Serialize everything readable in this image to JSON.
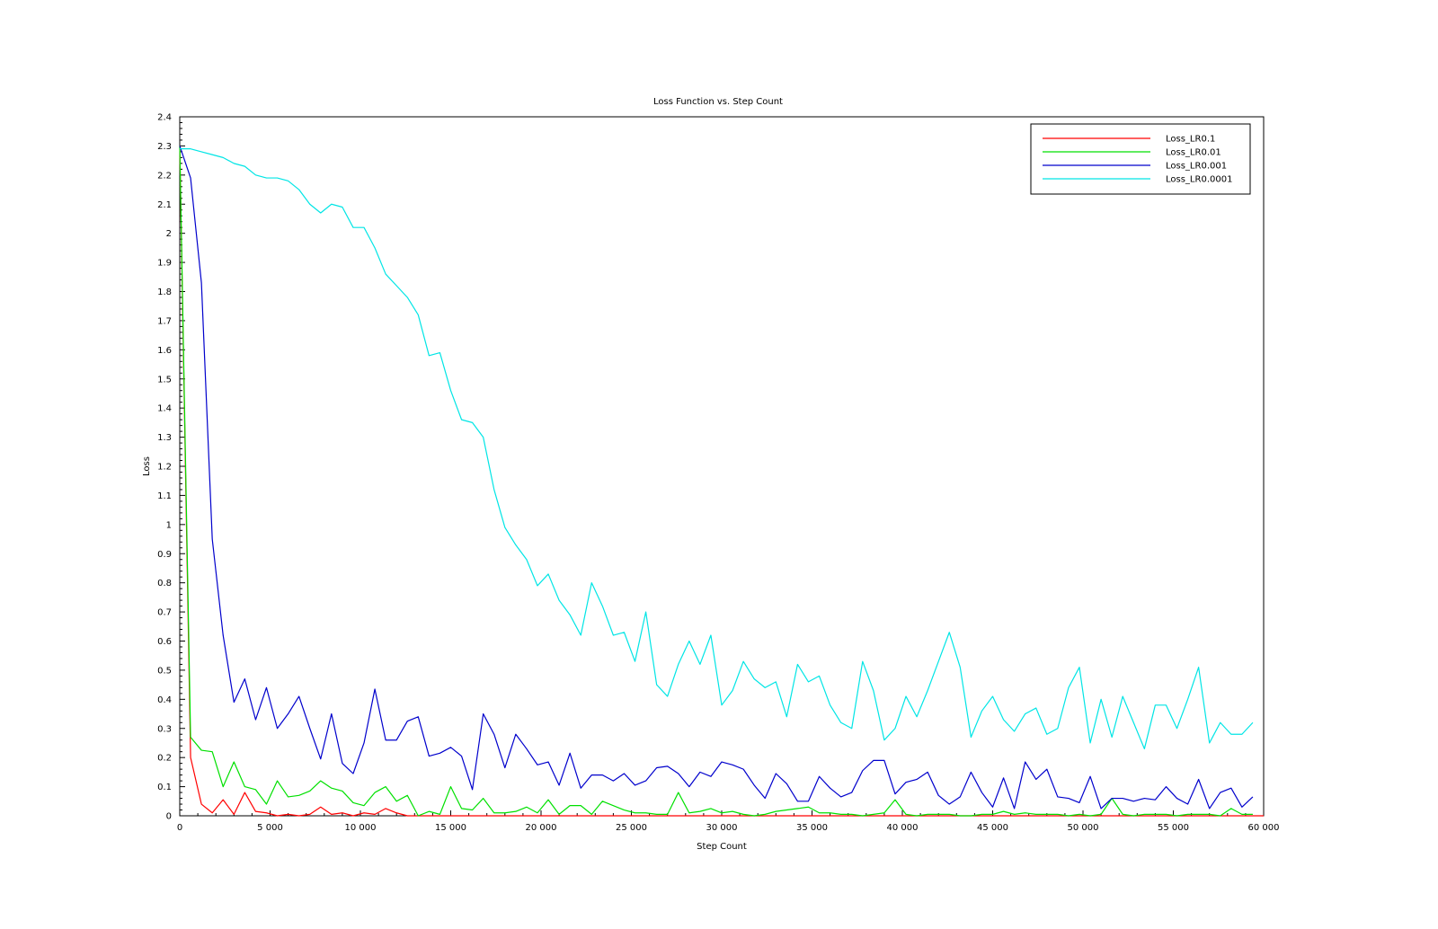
{
  "chart_data": {
    "type": "line",
    "title": "Loss Function vs. Step Count",
    "xlabel": "Step Count",
    "ylabel": "Loss",
    "xlim": [
      0,
      60000
    ],
    "ylim": [
      0,
      2.4
    ],
    "x_ticks": [
      0,
      5000,
      10000,
      15000,
      20000,
      25000,
      30000,
      35000,
      40000,
      45000,
      50000,
      55000,
      60000
    ],
    "x_tick_labels": [
      "0",
      "5 000",
      "10 000",
      "15 000",
      "20 000",
      "25 000",
      "30 000",
      "35 000",
      "40 000",
      "45 000",
      "50 000",
      "55 000",
      "60 000"
    ],
    "y_ticks": [
      0,
      0.1,
      0.2,
      0.3,
      0.4,
      0.5,
      0.6,
      0.7,
      0.8,
      0.9,
      1,
      1.1,
      1.2,
      1.3,
      1.4,
      1.5,
      1.6,
      1.7,
      1.8,
      1.9,
      2,
      2.1,
      2.2,
      2.3,
      2.4
    ],
    "y_tick_labels": [
      "0",
      "0.1",
      "0.2",
      "0.3",
      "0.4",
      "0.5",
      "0.6",
      "0.7",
      "0.8",
      "0.9",
      "1",
      "1.1",
      "1.2",
      "1.3",
      "1.4",
      "1.5",
      "1.6",
      "1.7",
      "1.8",
      "1.9",
      "2",
      "2.1",
      "2.2",
      "2.3",
      "2.4"
    ],
    "grid": false,
    "legend_position": "top-right",
    "series": [
      {
        "name": "Loss_LR0.1",
        "color": "#ff0000",
        "x": [
          0,
          600,
          1200,
          1800,
          2400,
          3000,
          3600,
          4200,
          4800,
          5400,
          6000,
          6600,
          7200,
          7800,
          8400,
          9000,
          9600,
          10200,
          10800,
          11400,
          12000,
          12600,
          13200,
          14000,
          16000,
          20000,
          25000,
          30000,
          35000,
          40000,
          45000,
          50000,
          55000,
          60000
        ],
        "y": [
          2.3,
          0.2,
          0.04,
          0.01,
          0.055,
          0.005,
          0.08,
          0.015,
          0.01,
          0.0,
          0.005,
          0.0,
          0.005,
          0.03,
          0.005,
          0.01,
          0.0,
          0.01,
          0.005,
          0.025,
          0.01,
          0.0,
          0.0,
          0.0,
          0.0,
          0.0,
          0.0,
          0.0,
          0.0,
          0.0,
          0.0,
          0.0,
          0.0,
          0.0
        ]
      },
      {
        "name": "Loss_LR0.01",
        "color": "#00e000",
        "x": [
          0,
          600,
          1200,
          1800,
          2400,
          3000,
          3600,
          4200,
          4800,
          5400,
          6000,
          6600,
          7200,
          7800,
          8400,
          9000,
          9600,
          10200,
          10800,
          11400,
          12000,
          12600,
          13200,
          13800,
          14400,
          15000,
          15600,
          16200,
          16800,
          17400,
          18000,
          18600,
          19200,
          19800,
          20400,
          21000,
          21600,
          22200,
          22800,
          23400,
          24000,
          24600,
          25200,
          25800,
          26400,
          27000,
          27600,
          28200,
          28800,
          29400,
          30000,
          30600,
          31200,
          31800,
          32400,
          33000,
          33600,
          34200,
          34800,
          35400,
          36000,
          36600,
          37200,
          37800,
          38400,
          39000,
          39600,
          40200,
          40800,
          41400,
          42000,
          42600,
          43200,
          43800,
          44400,
          45000,
          45600,
          46200,
          46800,
          47400,
          48000,
          48600,
          49200,
          49800,
          50400,
          51000,
          51600,
          52200,
          52800,
          53400,
          54000,
          54600,
          55200,
          55800,
          56400,
          57000,
          57600,
          58200,
          58800,
          59400
        ],
        "y": [
          2.3,
          0.27,
          0.225,
          0.22,
          0.1,
          0.185,
          0.1,
          0.09,
          0.04,
          0.12,
          0.065,
          0.07,
          0.085,
          0.12,
          0.095,
          0.085,
          0.045,
          0.035,
          0.08,
          0.1,
          0.05,
          0.07,
          0.0,
          0.015,
          0.005,
          0.1,
          0.025,
          0.02,
          0.06,
          0.01,
          0.01,
          0.015,
          0.03,
          0.01,
          0.055,
          0.005,
          0.035,
          0.035,
          0.005,
          0.05,
          0.035,
          0.02,
          0.01,
          0.01,
          0.005,
          0.005,
          0.08,
          0.01,
          0.015,
          0.025,
          0.01,
          0.015,
          0.005,
          0.0,
          0.005,
          0.015,
          0.02,
          0.025,
          0.03,
          0.01,
          0.01,
          0.005,
          0.005,
          0.0,
          0.005,
          0.01,
          0.055,
          0.005,
          0.0,
          0.005,
          0.005,
          0.005,
          0.0,
          0.0,
          0.005,
          0.005,
          0.015,
          0.005,
          0.01,
          0.005,
          0.005,
          0.005,
          0.0,
          0.005,
          0.0,
          0.005,
          0.06,
          0.005,
          0.0,
          0.005,
          0.005,
          0.005,
          0.0,
          0.005,
          0.005,
          0.005,
          0.0,
          0.025,
          0.005,
          0.005
        ]
      },
      {
        "name": "Loss_LR0.001",
        "color": "#0000cc",
        "x": [
          0,
          600,
          1200,
          1800,
          2400,
          3000,
          3600,
          4200,
          4800,
          5400,
          6000,
          6600,
          7200,
          7800,
          8400,
          9000,
          9600,
          10200,
          10800,
          11400,
          12000,
          12600,
          13200,
          13800,
          14400,
          15000,
          15600,
          16200,
          16800,
          17400,
          18000,
          18600,
          19200,
          19800,
          20400,
          21000,
          21600,
          22200,
          22800,
          23400,
          24000,
          24600,
          25200,
          25800,
          26400,
          27000,
          27600,
          28200,
          28800,
          29400,
          30000,
          30600,
          31200,
          31800,
          32400,
          33000,
          33600,
          34200,
          34800,
          35400,
          36000,
          36600,
          37200,
          37800,
          38400,
          39000,
          39600,
          40200,
          40800,
          41400,
          42000,
          42600,
          43200,
          43800,
          44400,
          45000,
          45600,
          46200,
          46800,
          47400,
          48000,
          48600,
          49200,
          49800,
          50400,
          51000,
          51600,
          52200,
          52800,
          53400,
          54000,
          54600,
          55200,
          55800,
          56400,
          57000,
          57600,
          58200,
          58800,
          59400
        ],
        "y": [
          2.3,
          2.19,
          1.83,
          0.95,
          0.62,
          0.39,
          0.47,
          0.33,
          0.44,
          0.3,
          0.35,
          0.41,
          0.3,
          0.195,
          0.35,
          0.18,
          0.145,
          0.25,
          0.435,
          0.26,
          0.26,
          0.325,
          0.34,
          0.205,
          0.215,
          0.235,
          0.205,
          0.09,
          0.35,
          0.28,
          0.165,
          0.28,
          0.23,
          0.175,
          0.185,
          0.105,
          0.215,
          0.095,
          0.14,
          0.14,
          0.12,
          0.145,
          0.105,
          0.12,
          0.165,
          0.17,
          0.145,
          0.1,
          0.15,
          0.135,
          0.185,
          0.175,
          0.16,
          0.105,
          0.06,
          0.145,
          0.11,
          0.05,
          0.05,
          0.135,
          0.095,
          0.065,
          0.08,
          0.155,
          0.19,
          0.19,
          0.075,
          0.115,
          0.125,
          0.15,
          0.07,
          0.04,
          0.065,
          0.15,
          0.08,
          0.03,
          0.13,
          0.025,
          0.185,
          0.125,
          0.16,
          0.065,
          0.06,
          0.045,
          0.135,
          0.025,
          0.06,
          0.06,
          0.05,
          0.06,
          0.055,
          0.1,
          0.06,
          0.04,
          0.125,
          0.025,
          0.08,
          0.095,
          0.03,
          0.065
        ]
      },
      {
        "name": "Loss_LR0.0001",
        "color": "#00e5e5",
        "x": [
          0,
          600,
          1200,
          1800,
          2400,
          3000,
          3600,
          4200,
          4800,
          5400,
          6000,
          6600,
          7200,
          7800,
          8400,
          9000,
          9600,
          10200,
          10800,
          11400,
          12000,
          12600,
          13200,
          13800,
          14400,
          15000,
          15600,
          16200,
          16800,
          17400,
          18000,
          18600,
          19200,
          19800,
          20400,
          21000,
          21600,
          22200,
          22800,
          23400,
          24000,
          24600,
          25200,
          25800,
          26400,
          27000,
          27600,
          28200,
          28800,
          29400,
          30000,
          30600,
          31200,
          31800,
          32400,
          33000,
          33600,
          34200,
          34800,
          35400,
          36000,
          36600,
          37200,
          37800,
          38400,
          39000,
          39600,
          40200,
          40800,
          41400,
          42000,
          42600,
          43200,
          43800,
          44400,
          45000,
          45600,
          46200,
          46800,
          47400,
          48000,
          48600,
          49200,
          49800,
          50400,
          51000,
          51600,
          52200,
          52800,
          53400,
          54000,
          54600,
          55200,
          55800,
          56400,
          57000,
          57600,
          58200,
          58800,
          59400
        ],
        "y": [
          2.29,
          2.29,
          2.28,
          2.27,
          2.26,
          2.24,
          2.23,
          2.2,
          2.19,
          2.19,
          2.18,
          2.15,
          2.1,
          2.07,
          2.1,
          2.09,
          2.02,
          2.02,
          1.95,
          1.86,
          1.82,
          1.78,
          1.72,
          1.58,
          1.59,
          1.46,
          1.36,
          1.35,
          1.3,
          1.12,
          0.99,
          0.93,
          0.88,
          0.79,
          0.83,
          0.74,
          0.69,
          0.62,
          0.8,
          0.72,
          0.62,
          0.63,
          0.53,
          0.7,
          0.45,
          0.41,
          0.52,
          0.6,
          0.52,
          0.62,
          0.38,
          0.43,
          0.53,
          0.47,
          0.44,
          0.46,
          0.34,
          0.52,
          0.46,
          0.48,
          0.38,
          0.32,
          0.3,
          0.53,
          0.43,
          0.26,
          0.3,
          0.41,
          0.34,
          0.43,
          0.53,
          0.63,
          0.51,
          0.27,
          0.36,
          0.41,
          0.33,
          0.29,
          0.35,
          0.37,
          0.28,
          0.3,
          0.44,
          0.51,
          0.25,
          0.4,
          0.27,
          0.41,
          0.32,
          0.23,
          0.38,
          0.38,
          0.3,
          0.4,
          0.51,
          0.25,
          0.32,
          0.28,
          0.28,
          0.32
        ]
      }
    ]
  }
}
